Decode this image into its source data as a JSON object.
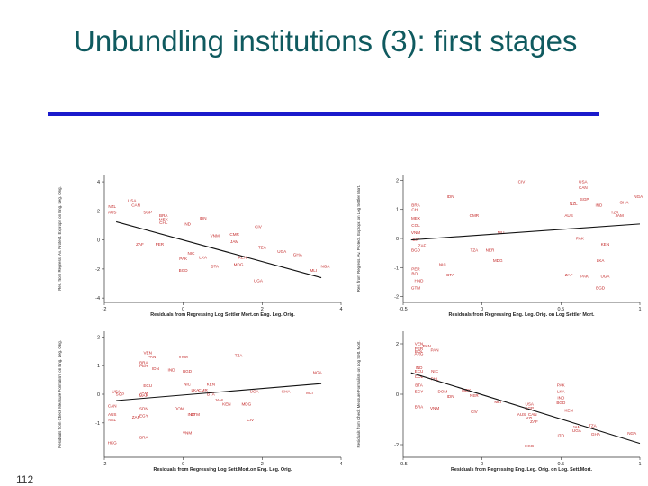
{
  "slide": {
    "title": "Unbundling institutions (3): first stages",
    "slide_number": "112"
  },
  "colors": {
    "title": "#0f5a5f",
    "rule": "#1a1acc",
    "point_labels": "#c42a2a"
  },
  "chart_data": [
    {
      "type": "scatter",
      "xlabel": "Residuals from Regressing Log Settler Mort.on Eng. Leg. Orig.",
      "ylabel": "Res. from Regress. Av. Protect. Expropr. on Eng. Leg. Orig.",
      "xlim": [
        -2,
        4
      ],
      "ylim": [
        -4.3,
        4.5
      ],
      "xticks": [
        -2,
        0,
        2,
        4
      ],
      "yticks": [
        -4,
        -2,
        0,
        2,
        4
      ],
      "fit_line": {
        "x": [
          -1.7,
          3.5
        ],
        "y": [
          1.25,
          -2.6
        ]
      },
      "points": [
        {
          "label": "NZL",
          "x": -1.8,
          "y": 2.2
        },
        {
          "label": "USA",
          "x": -1.3,
          "y": 2.6
        },
        {
          "label": "CAN",
          "x": -1.2,
          "y": 2.3
        },
        {
          "label": "AUS",
          "x": -1.8,
          "y": 1.8
        },
        {
          "label": "SGP",
          "x": -0.9,
          "y": 1.8
        },
        {
          "label": "BRA",
          "x": -0.5,
          "y": 1.6
        },
        {
          "label": "MEX",
          "x": -0.5,
          "y": 1.3
        },
        {
          "label": "CHL",
          "x": -0.5,
          "y": 1.1
        },
        {
          "label": "IDN",
          "x": 0.5,
          "y": 1.4
        },
        {
          "label": "IND",
          "x": 0.1,
          "y": 1.0
        },
        {
          "label": "CIV",
          "x": 1.9,
          "y": 0.8
        },
        {
          "label": "VNM",
          "x": 0.8,
          "y": 0.2
        },
        {
          "label": "CMR",
          "x": 1.3,
          "y": 0.3
        },
        {
          "label": "JAM",
          "x": 1.3,
          "y": -0.2
        },
        {
          "label": "ZAF",
          "x": -1.1,
          "y": -0.4
        },
        {
          "label": "PER",
          "x": -0.6,
          "y": -0.4
        },
        {
          "label": "TZA",
          "x": 2.0,
          "y": -0.6
        },
        {
          "label": "UGA",
          "x": 2.5,
          "y": -0.9
        },
        {
          "label": "NIC",
          "x": 0.2,
          "y": -1.0
        },
        {
          "label": "KEN",
          "x": 1.5,
          "y": -1.3
        },
        {
          "label": "LKA",
          "x": 0.5,
          "y": -1.3
        },
        {
          "label": "PAK",
          "x": 0.0,
          "y": -1.4
        },
        {
          "label": "GHA",
          "x": 2.9,
          "y": -1.1
        },
        {
          "label": "BTA",
          "x": 0.8,
          "y": -1.9
        },
        {
          "label": "MDG",
          "x": 1.4,
          "y": -1.8
        },
        {
          "label": "NGA",
          "x": 3.6,
          "y": -1.9
        },
        {
          "label": "BGD",
          "x": 0.0,
          "y": -2.2
        },
        {
          "label": "MLI",
          "x": 3.3,
          "y": -2.2
        },
        {
          "label": "UGA",
          "x": 1.9,
          "y": -2.9
        }
      ]
    },
    {
      "type": "scatter",
      "xlabel": "Residuals from Regressing Eng. Leg. Orig. on Log Settler Mort.",
      "ylabel": "Res. from Regress. Av. Protect. Expropr. on Log Settler Mort.",
      "xlim": [
        -0.5,
        1
      ],
      "ylim": [
        -2.2,
        2.2
      ],
      "xticks": [
        -0.5,
        0,
        0.5,
        1
      ],
      "yticks": [
        -2,
        -1,
        0,
        1,
        2
      ],
      "fit_line": {
        "x": [
          -0.45,
          1.0
        ],
        "y": [
          -0.05,
          0.5
        ]
      },
      "points": [
        {
          "label": "CIV",
          "x": 0.25,
          "y": 1.9
        },
        {
          "label": "USA",
          "x": 0.64,
          "y": 1.9
        },
        {
          "label": "CAN",
          "x": 0.64,
          "y": 1.7
        },
        {
          "label": "IDN",
          "x": -0.2,
          "y": 1.4
        },
        {
          "label": "SGP",
          "x": 0.65,
          "y": 1.3
        },
        {
          "label": "NZL",
          "x": 0.58,
          "y": 1.15
        },
        {
          "label": "IND",
          "x": 0.74,
          "y": 1.1
        },
        {
          "label": "NGA",
          "x": 0.99,
          "y": 1.4
        },
        {
          "label": "GHA",
          "x": 0.9,
          "y": 1.2
        },
        {
          "label": "TZA",
          "x": 0.84,
          "y": 0.85
        },
        {
          "label": "JAM",
          "x": 0.87,
          "y": 0.75
        },
        {
          "label": "BRA",
          "x": -0.42,
          "y": 1.1
        },
        {
          "label": "CHL",
          "x": -0.42,
          "y": 0.95
        },
        {
          "label": "MEX",
          "x": -0.42,
          "y": 0.65
        },
        {
          "label": "CMR",
          "x": -0.05,
          "y": 0.75
        },
        {
          "label": "AUS",
          "x": 0.55,
          "y": 0.75
        },
        {
          "label": "COL",
          "x": -0.42,
          "y": 0.4
        },
        {
          "label": "VNM",
          "x": -0.42,
          "y": 0.15
        },
        {
          "label": "MLI",
          "x": 0.12,
          "y": 0.15
        },
        {
          "label": "CIV",
          "x": -0.42,
          "y": -0.1
        },
        {
          "label": "ZAF",
          "x": -0.38,
          "y": -0.3
        },
        {
          "label": "BGD",
          "x": -0.42,
          "y": -0.45
        },
        {
          "label": "TZA",
          "x": -0.05,
          "y": -0.45
        },
        {
          "label": "KEN",
          "x": 0.78,
          "y": -0.25
        },
        {
          "label": "PAK",
          "x": 0.62,
          "y": -0.05
        },
        {
          "label": "NER",
          "x": 0.05,
          "y": -0.45
        },
        {
          "label": "MDG",
          "x": 0.1,
          "y": -0.8
        },
        {
          "label": "LKA",
          "x": 0.75,
          "y": -0.8
        },
        {
          "label": "NIC",
          "x": -0.25,
          "y": -0.95
        },
        {
          "label": "PER",
          "x": -0.42,
          "y": -1.1
        },
        {
          "label": "BOL",
          "x": -0.42,
          "y": -1.25
        },
        {
          "label": "BTA",
          "x": -0.2,
          "y": -1.3
        },
        {
          "label": "ZAF",
          "x": 0.55,
          "y": -1.3
        },
        {
          "label": "PAK",
          "x": 0.65,
          "y": -1.35
        },
        {
          "label": "UGA",
          "x": 0.78,
          "y": -1.35
        },
        {
          "label": "HND",
          "x": -0.4,
          "y": -1.5
        },
        {
          "label": "GTM",
          "x": -0.42,
          "y": -1.75
        },
        {
          "label": "BGD",
          "x": 0.75,
          "y": -1.75
        }
      ]
    },
    {
      "type": "scatter",
      "xlabel": "Residuals from Regressing Log Sett.Mort.on Eng. Leg. Orig.",
      "ylabel": "Residuals from Check Measure Formalism on Eng. Leg. Orig.",
      "xlim": [
        -2,
        4
      ],
      "ylim": [
        -2.2,
        2.2
      ],
      "xticks": [
        -2,
        0,
        2,
        4
      ],
      "yticks": [
        -1,
        0,
        1,
        2
      ],
      "fit_line": {
        "x": [
          -1.7,
          3.5
        ],
        "y": [
          -0.22,
          0.37
        ]
      },
      "points": [
        {
          "label": "VEN",
          "x": -0.9,
          "y": 1.4
        },
        {
          "label": "PAN",
          "x": -0.8,
          "y": 1.25
        },
        {
          "label": "VNM",
          "x": 0.0,
          "y": 1.25
        },
        {
          "label": "TZA",
          "x": 1.4,
          "y": 1.3
        },
        {
          "label": "BRA",
          "x": -1.0,
          "y": 1.05
        },
        {
          "label": "PER",
          "x": -1.0,
          "y": 0.95
        },
        {
          "label": "IDN",
          "x": -0.7,
          "y": 0.85
        },
        {
          "label": "IND",
          "x": -0.3,
          "y": 0.8
        },
        {
          "label": "BGD",
          "x": 0.1,
          "y": 0.75
        },
        {
          "label": "NGA",
          "x": 3.4,
          "y": 0.7
        },
        {
          "label": "KEN",
          "x": 0.7,
          "y": 0.3
        },
        {
          "label": "NIC",
          "x": 0.1,
          "y": 0.3
        },
        {
          "label": "ECU",
          "x": -0.9,
          "y": 0.25
        },
        {
          "label": "CMR",
          "x": 0.5,
          "y": 0.1
        },
        {
          "label": "JAM",
          "x": -1.0,
          "y": 0.0
        },
        {
          "label": "USA",
          "x": -1.7,
          "y": 0.05
        },
        {
          "label": "SGP",
          "x": -1.6,
          "y": -0.05
        },
        {
          "label": "LKA",
          "x": 0.3,
          "y": 0.1
        },
        {
          "label": "UGA",
          "x": 1.8,
          "y": 0.05
        },
        {
          "label": "GHA",
          "x": 2.6,
          "y": 0.05
        },
        {
          "label": "MLI",
          "x": 3.2,
          "y": 0.0
        },
        {
          "label": "MAR",
          "x": -1.0,
          "y": -0.1
        },
        {
          "label": "BTA",
          "x": 0.7,
          "y": -0.05
        },
        {
          "label": "JAM",
          "x": 0.9,
          "y": -0.25
        },
        {
          "label": "CAN",
          "x": -1.8,
          "y": -0.45
        },
        {
          "label": "SDN",
          "x": -1.0,
          "y": -0.55
        },
        {
          "label": "DOM",
          "x": -0.1,
          "y": -0.55
        },
        {
          "label": "KEN",
          "x": 1.1,
          "y": -0.4
        },
        {
          "label": "MDG",
          "x": 1.6,
          "y": -0.4
        },
        {
          "label": "AUS",
          "x": -1.8,
          "y": -0.75
        },
        {
          "label": "NZL",
          "x": -1.8,
          "y": -0.95
        },
        {
          "label": "ZAF",
          "x": -1.2,
          "y": -0.85
        },
        {
          "label": "EGY",
          "x": -1.0,
          "y": -0.8
        },
        {
          "label": "IND",
          "x": 0.2,
          "y": -0.75
        },
        {
          "label": "GTM",
          "x": 0.3,
          "y": -0.75
        },
        {
          "label": "CIV",
          "x": 1.7,
          "y": -0.95
        },
        {
          "label": "VNM",
          "x": 0.1,
          "y": -1.4
        },
        {
          "label": "BRA",
          "x": -1.0,
          "y": -1.55
        },
        {
          "label": "HKG",
          "x": -1.8,
          "y": -1.75
        }
      ]
    },
    {
      "type": "scatter",
      "xlabel": "Residuals from Regressing Eng. Leg. Orig. on Log. Sett.Mort.",
      "ylabel": "Residuals from Check Measure Formalism on Log Sett. Mort.",
      "xlim": [
        -0.5,
        1
      ],
      "ylim": [
        -2.5,
        2.5
      ],
      "xticks": [
        -0.5,
        0,
        0.5,
        1
      ],
      "yticks": [
        -2,
        0,
        2
      ],
      "fit_line": {
        "x": [
          -0.45,
          1.0
        ],
        "y": [
          0.85,
          -1.95
        ]
      },
      "points": [
        {
          "label": "VEN",
          "x": -0.4,
          "y": 1.95
        },
        {
          "label": "PAN",
          "x": -0.35,
          "y": 1.85
        },
        {
          "label": "PER",
          "x": -0.4,
          "y": 1.75
        },
        {
          "label": "BOL",
          "x": -0.4,
          "y": 1.65
        },
        {
          "label": "ARG",
          "x": -0.4,
          "y": 1.55
        },
        {
          "label": "PAN",
          "x": -0.3,
          "y": 1.7
        },
        {
          "label": "IND",
          "x": -0.4,
          "y": 1.0
        },
        {
          "label": "ECU",
          "x": -0.4,
          "y": 0.85
        },
        {
          "label": "NIC",
          "x": -0.3,
          "y": 0.85
        },
        {
          "label": "COL",
          "x": -0.4,
          "y": 0.65
        },
        {
          "label": "PHL",
          "x": -0.3,
          "y": 0.55
        },
        {
          "label": "BTA",
          "x": -0.4,
          "y": 0.3
        },
        {
          "label": "EGY",
          "x": -0.4,
          "y": 0.05
        },
        {
          "label": "DOM",
          "x": -0.25,
          "y": 0.05
        },
        {
          "label": "IDN",
          "x": -0.2,
          "y": -0.15
        },
        {
          "label": "NER",
          "x": -0.05,
          "y": -0.1
        },
        {
          "label": "MEX",
          "x": -0.1,
          "y": 0.1
        },
        {
          "label": "PAK",
          "x": 0.5,
          "y": 0.3
        },
        {
          "label": "LKA",
          "x": 0.5,
          "y": 0.05
        },
        {
          "label": "IND",
          "x": 0.5,
          "y": -0.2
        },
        {
          "label": "BGD",
          "x": 0.5,
          "y": -0.4
        },
        {
          "label": "MLI",
          "x": 0.1,
          "y": -0.35
        },
        {
          "label": "USA",
          "x": 0.3,
          "y": -0.45
        },
        {
          "label": "SGP",
          "x": 0.3,
          "y": -0.6
        },
        {
          "label": "KEN",
          "x": 0.55,
          "y": -0.7
        },
        {
          "label": "BRA",
          "x": -0.4,
          "y": -0.55
        },
        {
          "label": "VNM",
          "x": -0.3,
          "y": -0.6
        },
        {
          "label": "CIV",
          "x": -0.05,
          "y": -0.75
        },
        {
          "label": "AUS",
          "x": 0.25,
          "y": -0.85
        },
        {
          "label": "CAN",
          "x": 0.32,
          "y": -0.85
        },
        {
          "label": "NZL",
          "x": 0.3,
          "y": -1.0
        },
        {
          "label": "ZAF",
          "x": 0.33,
          "y": -1.15
        },
        {
          "label": "JAM",
          "x": 0.6,
          "y": -1.35
        },
        {
          "label": "TZA",
          "x": 0.7,
          "y": -1.3
        },
        {
          "label": "UGA",
          "x": 0.6,
          "y": -1.5
        },
        {
          "label": "GHA",
          "x": 0.72,
          "y": -1.65
        },
        {
          "label": "NGA",
          "x": 0.95,
          "y": -1.6
        },
        {
          "label": "ITO",
          "x": 0.5,
          "y": -1.7
        },
        {
          "label": "HKG",
          "x": 0.3,
          "y": -2.1
        }
      ]
    }
  ]
}
